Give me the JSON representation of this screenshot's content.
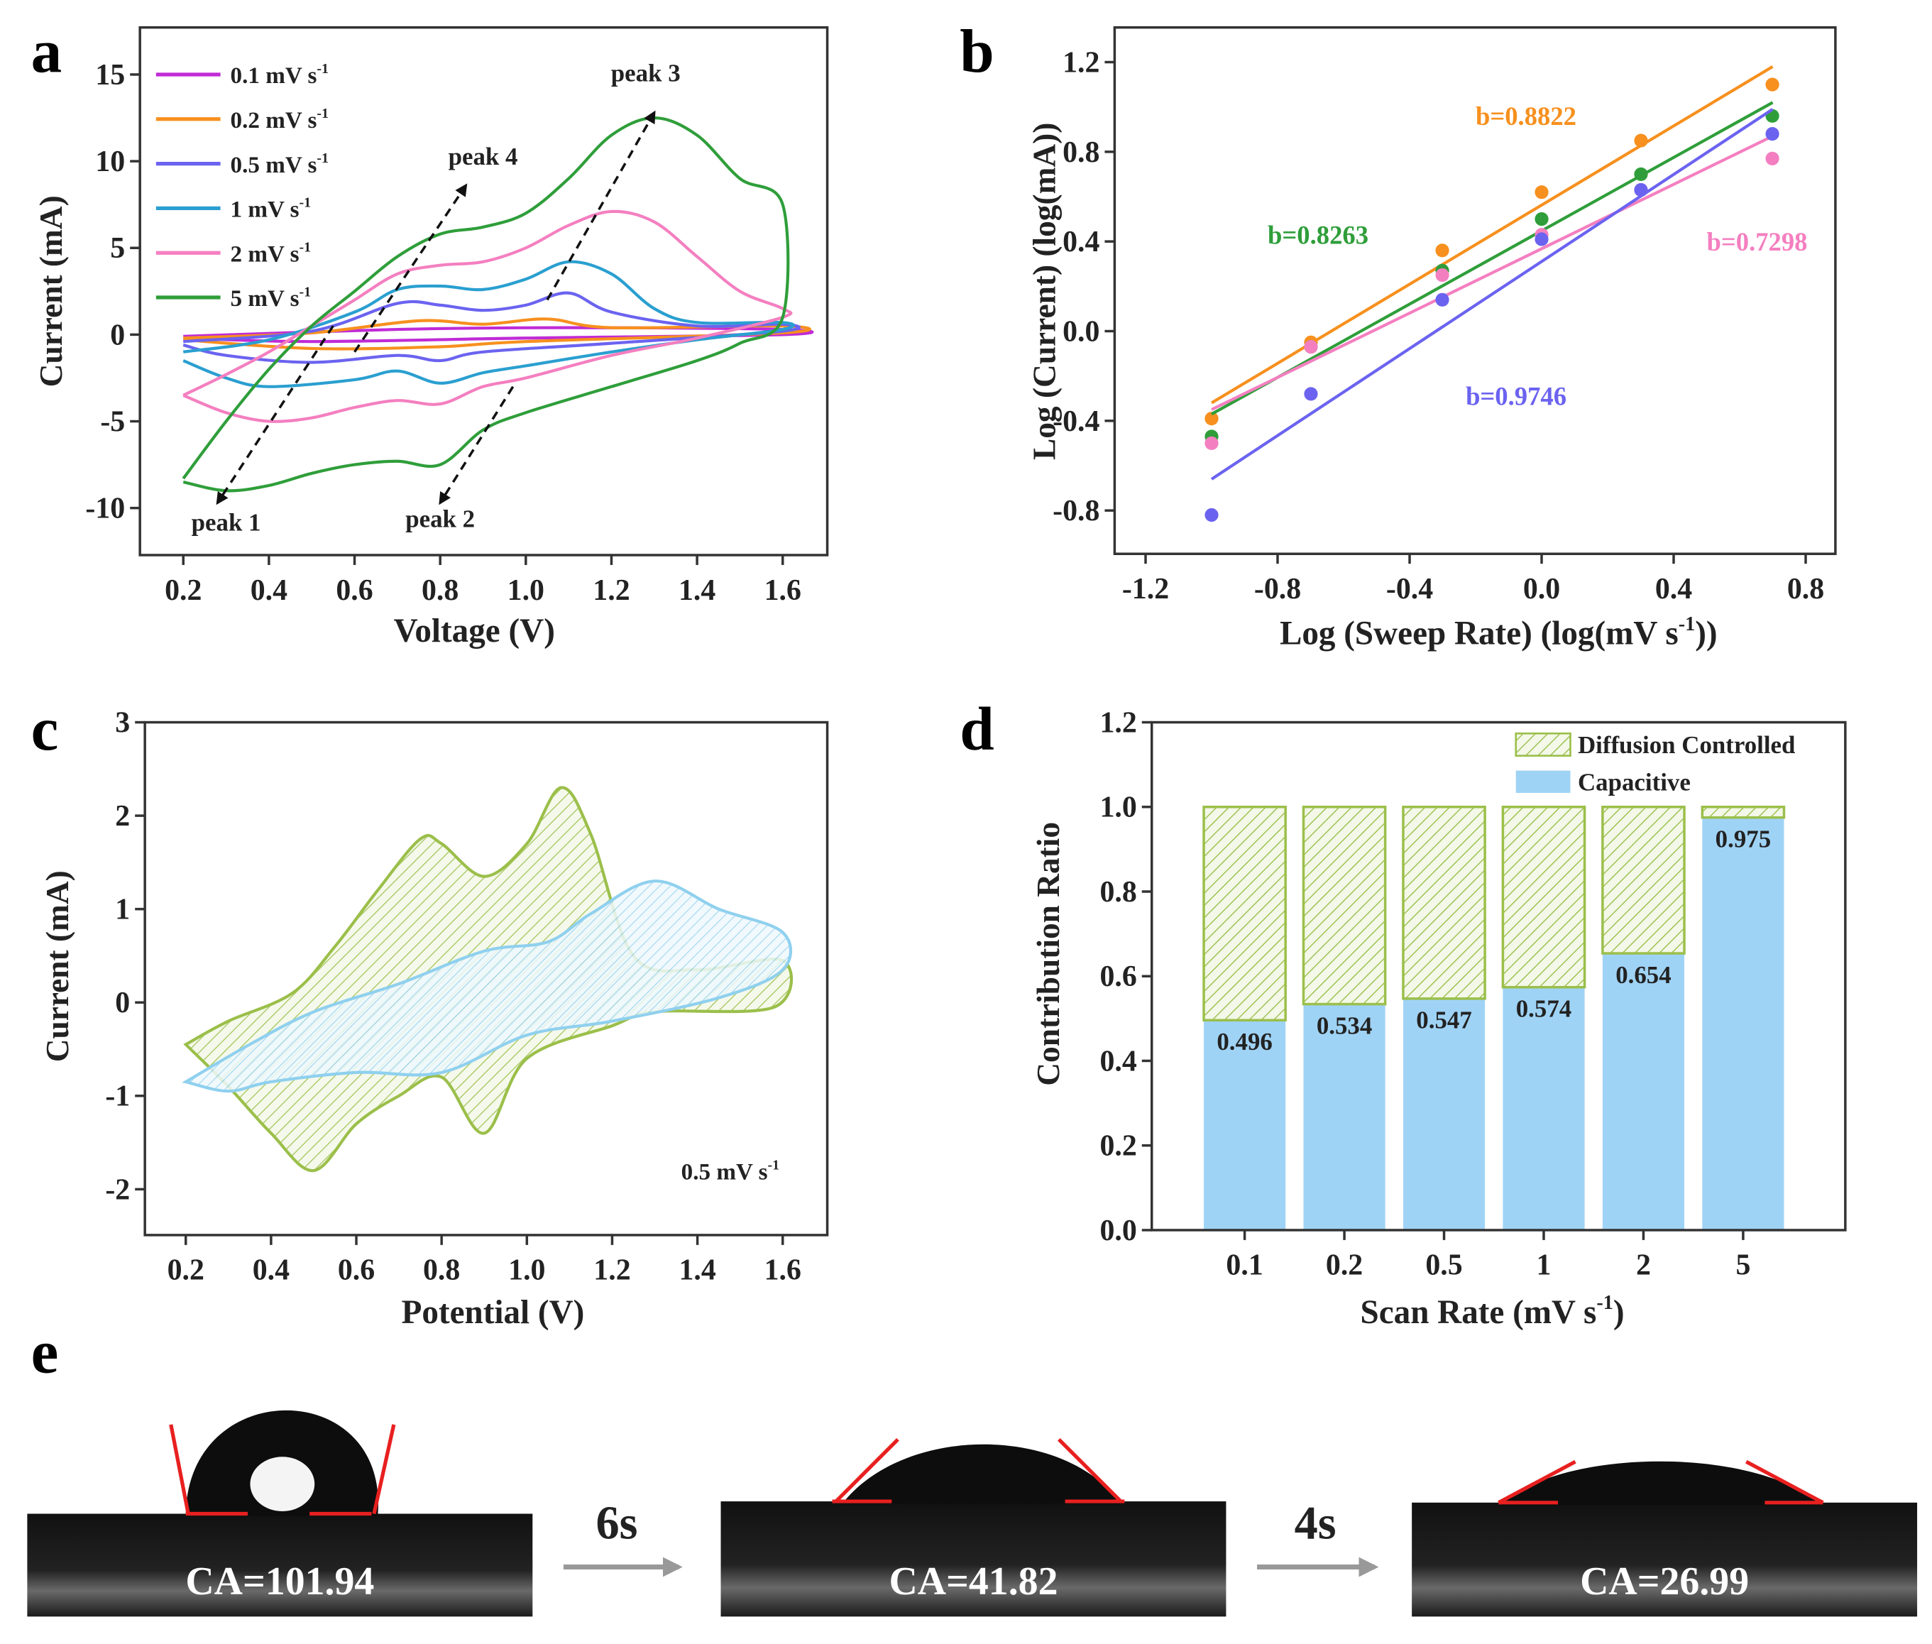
{
  "panels": {
    "a": "a",
    "b": "b",
    "c": "c",
    "d": "d",
    "e": "e"
  },
  "chart_data": [
    {
      "id": "a",
      "type": "line",
      "xlabel": "Voltage (V)",
      "ylabel": "Current (mA)",
      "xlim": [
        0.2,
        1.6
      ],
      "ylim": [
        -10,
        15
      ],
      "xticks": [
        0.2,
        0.4,
        0.6,
        0.8,
        1.0,
        1.2,
        1.4,
        1.6
      ],
      "yticks": [
        -10,
        -5,
        0,
        5,
        10,
        15
      ],
      "series": [
        {
          "name": "0.1 mV s",
          "sup": "-1",
          "color": "#c02bd6",
          "points": [
            [
              0.2,
              -0.1
            ],
            [
              0.7,
              0.3
            ],
            [
              1.1,
              0.4
            ],
            [
              1.6,
              0.3
            ],
            [
              1.6,
              0
            ],
            [
              1.0,
              -0.2
            ],
            [
              0.5,
              -0.4
            ],
            [
              0.2,
              -0.2
            ]
          ]
        },
        {
          "name": "0.2 mV s",
          "sup": "-1",
          "color": "#f7901e",
          "points": [
            [
              0.2,
              -0.2
            ],
            [
              0.5,
              0.1
            ],
            [
              0.75,
              0.8
            ],
            [
              0.9,
              0.6
            ],
            [
              1.05,
              0.9
            ],
            [
              1.2,
              0.4
            ],
            [
              1.6,
              0.5
            ],
            [
              1.6,
              0.1
            ],
            [
              1.0,
              -0.4
            ],
            [
              0.8,
              -0.7
            ],
            [
              0.5,
              -0.8
            ],
            [
              0.2,
              -0.3
            ]
          ]
        },
        {
          "name": "0.5 mV s",
          "sup": "-1",
          "color": "#6b63f0",
          "points": [
            [
              0.2,
              -0.4
            ],
            [
              0.5,
              0.2
            ],
            [
              0.7,
              1.8
            ],
            [
              0.8,
              1.7
            ],
            [
              0.9,
              1.4
            ],
            [
              1.0,
              1.7
            ],
            [
              1.1,
              2.4
            ],
            [
              1.2,
              1.3
            ],
            [
              1.4,
              0.5
            ],
            [
              1.6,
              0.6
            ],
            [
              1.6,
              0.2
            ],
            [
              1.2,
              -0.5
            ],
            [
              0.9,
              -1.0
            ],
            [
              0.8,
              -1.5
            ],
            [
              0.7,
              -1.2
            ],
            [
              0.5,
              -1.6
            ],
            [
              0.3,
              -1.2
            ],
            [
              0.2,
              -0.6
            ]
          ]
        },
        {
          "name": "1 mV s",
          "sup": "-1",
          "color": "#2a9fd0",
          "points": [
            [
              0.2,
              -1
            ],
            [
              0.4,
              -0.3
            ],
            [
              0.6,
              1.3
            ],
            [
              0.7,
              2.6
            ],
            [
              0.8,
              2.8
            ],
            [
              0.9,
              2.6
            ],
            [
              1.0,
              3.2
            ],
            [
              1.1,
              4.2
            ],
            [
              1.2,
              3.5
            ],
            [
              1.3,
              1.5
            ],
            [
              1.4,
              0.7
            ],
            [
              1.6,
              0.7
            ],
            [
              1.6,
              0.3
            ],
            [
              1.4,
              -0.3
            ],
            [
              1.2,
              -1
            ],
            [
              1.0,
              -1.8
            ],
            [
              0.9,
              -2.2
            ],
            [
              0.8,
              -2.8
            ],
            [
              0.7,
              -2.1
            ],
            [
              0.6,
              -2.6
            ],
            [
              0.4,
              -3
            ],
            [
              0.3,
              -2.5
            ],
            [
              0.2,
              -1.5
            ]
          ]
        },
        {
          "name": "2 mV s",
          "sup": "-1",
          "color": "#f47fc0",
          "points": [
            [
              0.2,
              -3.5
            ],
            [
              0.3,
              -2.3
            ],
            [
              0.4,
              -1
            ],
            [
              0.5,
              0.5
            ],
            [
              0.6,
              2
            ],
            [
              0.7,
              3.5
            ],
            [
              0.8,
              4
            ],
            [
              0.9,
              4.2
            ],
            [
              1.0,
              5
            ],
            [
              1.1,
              6.3
            ],
            [
              1.2,
              7.1
            ],
            [
              1.3,
              6.5
            ],
            [
              1.4,
              4.5
            ],
            [
              1.5,
              2.5
            ],
            [
              1.6,
              1.5
            ],
            [
              1.6,
              1
            ],
            [
              1.4,
              -0.2
            ],
            [
              1.2,
              -1.2
            ],
            [
              1.0,
              -2.5
            ],
            [
              0.9,
              -3
            ],
            [
              0.8,
              -4
            ],
            [
              0.7,
              -3.8
            ],
            [
              0.6,
              -4.2
            ],
            [
              0.5,
              -4.8
            ],
            [
              0.4,
              -5
            ],
            [
              0.3,
              -4.5
            ],
            [
              0.2,
              -3.5
            ]
          ]
        },
        {
          "name": "5 mV s",
          "sup": "-1",
          "color": "#2f9e3a",
          "points": [
            [
              0.2,
              -8.3
            ],
            [
              0.3,
              -5
            ],
            [
              0.4,
              -2
            ],
            [
              0.5,
              0.5
            ],
            [
              0.6,
              2.5
            ],
            [
              0.7,
              4.5
            ],
            [
              0.8,
              5.8
            ],
            [
              0.9,
              6.2
            ],
            [
              1.0,
              7
            ],
            [
              1.1,
              9
            ],
            [
              1.2,
              11.5
            ],
            [
              1.3,
              12.5
            ],
            [
              1.4,
              11.5
            ],
            [
              1.5,
              9
            ],
            [
              1.6,
              7.5
            ],
            [
              1.6,
              1
            ],
            [
              1.5,
              -0.5
            ],
            [
              1.4,
              -1.5
            ],
            [
              1.2,
              -3
            ],
            [
              1.0,
              -4.5
            ],
            [
              0.9,
              -5.5
            ],
            [
              0.8,
              -7.5
            ],
            [
              0.7,
              -7.3
            ],
            [
              0.6,
              -7.5
            ],
            [
              0.5,
              -8
            ],
            [
              0.4,
              -8.7
            ],
            [
              0.3,
              -9
            ],
            [
              0.2,
              -8.5
            ]
          ]
        }
      ],
      "annotations": [
        {
          "text": "peak 1",
          "from": [
            0.55,
            0.5
          ],
          "to": [
            0.28,
            -9.7
          ],
          "label_at": [
            0.3,
            -11.3
          ]
        },
        {
          "text": "peak 2",
          "from": [
            0.97,
            -3
          ],
          "to": [
            0.8,
            -9.7
          ],
          "label_at": [
            0.8,
            -11.1
          ]
        },
        {
          "text": "peak 3",
          "from": [
            1.05,
            2
          ],
          "to": [
            1.3,
            12.8
          ],
          "label_at": [
            1.28,
            14.6
          ]
        },
        {
          "text": "peak 4",
          "from": [
            0.6,
            -1
          ],
          "to": [
            0.86,
            8.6
          ],
          "label_at": [
            0.9,
            9.8
          ]
        }
      ]
    },
    {
      "id": "b",
      "type": "scatter",
      "xlabel": "Log (Sweep Rate) (log(mV s",
      "xlabel_sup": "-1",
      "xlabel_end": "))",
      "ylabel": "Log (Current) (log(mA))",
      "xlim": [
        -1.2,
        0.8
      ],
      "ylim": [
        -0.8,
        1.2
      ],
      "xticks": [
        -1.2,
        -0.8,
        -0.4,
        0.0,
        0.4,
        0.8
      ],
      "yticks": [
        -0.8,
        -0.4,
        0.0,
        0.4,
        0.8,
        1.2
      ],
      "tick_labels_x": [
        "-1.2",
        "-0.8",
        "-0.4",
        "0.0",
        "0.4",
        "0.8"
      ],
      "tick_labels_y": [
        "-0.8",
        "-0.4",
        "0.0",
        "0.4",
        "0.8",
        "1.2"
      ],
      "x": [
        -1.0,
        -0.699,
        -0.301,
        0.0,
        0.301,
        0.699
      ],
      "series": [
        {
          "name": "b=0.8822",
          "color": "#f7901e",
          "values": [
            -0.39,
            -0.05,
            0.36,
            0.62,
            0.85,
            1.1
          ],
          "fit": [
            [
              -1.0,
              -0.32
            ],
            [
              0.7,
              1.18
            ]
          ],
          "label_at": [
            -0.2,
            0.92
          ]
        },
        {
          "name": "b=0.8263",
          "color": "#2f9e3a",
          "values": [
            -0.47,
            -0.07,
            0.27,
            0.5,
            0.7,
            0.96
          ],
          "fit": [
            [
              -1.0,
              -0.37
            ],
            [
              0.7,
              1.02
            ]
          ],
          "label_at": [
            -0.83,
            0.39
          ]
        },
        {
          "name": "b=0.7298",
          "color": "#f47fc0",
          "values": [
            -0.5,
            -0.07,
            0.25,
            0.43,
            0.63,
            0.77
          ],
          "fit": [
            [
              -1.0,
              -0.35
            ],
            [
              0.7,
              0.87
            ]
          ],
          "label_at": [
            0.5,
            0.36
          ]
        },
        {
          "name": "b=0.9746",
          "color": "#6b63f0",
          "values": [
            -0.82,
            -0.28,
            0.14,
            0.41,
            0.63,
            0.88
          ],
          "fit": [
            [
              -1.0,
              -0.66
            ],
            [
              0.7,
              0.99
            ]
          ],
          "label_at": [
            -0.23,
            -0.33
          ]
        }
      ]
    },
    {
      "id": "c",
      "type": "area",
      "xlabel": "Potential (V)",
      "ylabel": "Current (mA)",
      "xlim": [
        0.2,
        1.6
      ],
      "ylim": [
        -2,
        3
      ],
      "xticks": [
        0.2,
        0.4,
        0.6,
        0.8,
        1.0,
        1.2,
        1.4,
        1.6
      ],
      "yticks": [
        -2,
        -1,
        0,
        1,
        2,
        3
      ],
      "annotation": "0.5 mV s",
      "annotation_sup": "-1",
      "series": [
        {
          "name": "total",
          "color": "#9bbf4a",
          "points": [
            [
              0.2,
              -0.45
            ],
            [
              0.3,
              -0.2
            ],
            [
              0.45,
              0.1
            ],
            [
              0.55,
              0.6
            ],
            [
              0.65,
              1.2
            ],
            [
              0.75,
              1.75
            ],
            [
              0.8,
              1.7
            ],
            [
              0.9,
              1.35
            ],
            [
              1.0,
              1.7
            ],
            [
              1.08,
              2.3
            ],
            [
              1.15,
              1.8
            ],
            [
              1.25,
              0.5
            ],
            [
              1.4,
              0.35
            ],
            [
              1.6,
              0.45
            ],
            [
              1.58,
              -0.05
            ],
            [
              1.3,
              -0.1
            ],
            [
              1.2,
              -0.25
            ],
            [
              1.0,
              -0.6
            ],
            [
              0.9,
              -1.4
            ],
            [
              0.8,
              -0.8
            ],
            [
              0.7,
              -1.0
            ],
            [
              0.6,
              -1.3
            ],
            [
              0.5,
              -1.8
            ],
            [
              0.4,
              -1.4
            ],
            [
              0.3,
              -0.9
            ],
            [
              0.2,
              -0.45
            ]
          ]
        },
        {
          "name": "capacitive",
          "color": "#8fd0ee",
          "points": [
            [
              0.2,
              -0.85
            ],
            [
              0.35,
              -0.45
            ],
            [
              0.5,
              -0.1
            ],
            [
              0.7,
              0.2
            ],
            [
              0.9,
              0.55
            ],
            [
              1.05,
              0.65
            ],
            [
              1.15,
              0.95
            ],
            [
              1.3,
              1.3
            ],
            [
              1.45,
              1.0
            ],
            [
              1.6,
              0.75
            ],
            [
              1.6,
              0.35
            ],
            [
              1.45,
              0.05
            ],
            [
              1.2,
              -0.2
            ],
            [
              1.0,
              -0.35
            ],
            [
              0.8,
              -0.75
            ],
            [
              0.6,
              -0.75
            ],
            [
              0.4,
              -0.85
            ],
            [
              0.3,
              -0.95
            ],
            [
              0.2,
              -0.85
            ]
          ]
        }
      ]
    },
    {
      "id": "d",
      "type": "bar",
      "xlabel": "Scan Rate (mV s",
      "xlabel_sup": "-1",
      "xlabel_end": ")",
      "ylabel": "Contribution Ratio",
      "ylim": [
        0,
        1.2
      ],
      "yticks": [
        0.0,
        0.2,
        0.4,
        0.6,
        0.8,
        1.0,
        1.2
      ],
      "tick_labels_y": [
        "0.0",
        "0.2",
        "0.4",
        "0.6",
        "0.8",
        "1.0",
        "1.2"
      ],
      "categories": [
        "0.1",
        "0.2",
        "0.5",
        "1",
        "2",
        "5"
      ],
      "series": [
        {
          "name": "Capacitive",
          "color": "#9fd3f5",
          "values": [
            0.496,
            0.534,
            0.547,
            0.574,
            0.654,
            0.975
          ]
        },
        {
          "name": "Diffusion Controlled",
          "color": "#9bbf4a",
          "values": [
            0.504,
            0.466,
            0.453,
            0.426,
            0.346,
            0.025
          ]
        }
      ],
      "data_labels": [
        "0.496",
        "0.534",
        "0.547",
        "0.574",
        "0.654",
        "0.975"
      ],
      "legend": "top-right"
    }
  ],
  "contact_angle": {
    "images": [
      {
        "label": "CA=101.94",
        "angle": 101.94
      },
      {
        "label": "CA=41.82",
        "angle": 41.82
      },
      {
        "label": "CA=26.99",
        "angle": 26.99
      }
    ],
    "steps": [
      "6s",
      "4s"
    ],
    "line_color": "#e82020"
  }
}
